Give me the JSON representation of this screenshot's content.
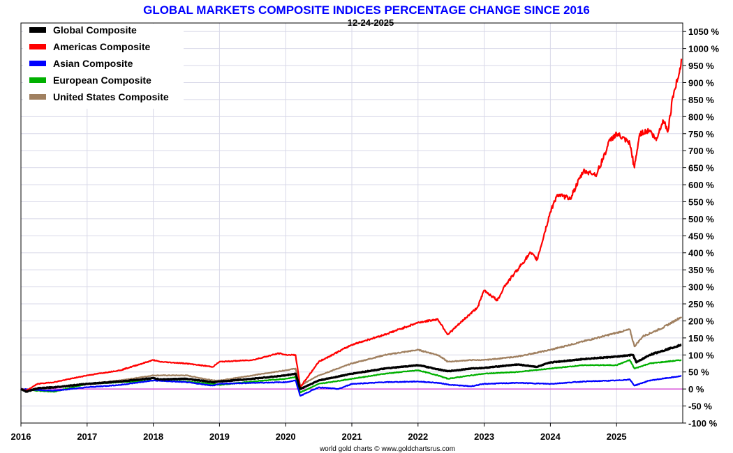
{
  "chart_data": {
    "type": "line",
    "title": "GLOBAL MARKETS COMPOSITE INDICES PERCENTAGE CHANGE SINCE 2016",
    "subtitle": "12-24-2025",
    "credit": "world gold charts © www.goldchartsrus.com",
    "ylabel": "",
    "xlabel": "",
    "x_range": [
      2016.0,
      2026.0
    ],
    "ylim": [
      -100,
      1075
    ],
    "x_ticks": [
      "2016",
      "2017",
      "2018",
      "2019",
      "2020",
      "2021",
      "2022",
      "2023",
      "2024",
      "2025"
    ],
    "y_ticks": [
      "1050 %",
      "1000 %",
      "950 %",
      "900 %",
      "850 %",
      "800 %",
      "750 %",
      "700 %",
      "650 %",
      "600 %",
      "550 %",
      "500 %",
      "450 %",
      "400 %",
      "350 %",
      "300 %",
      "250 %",
      "200 %",
      "150 %",
      "100 %",
      "50 %",
      "0 %",
      "-50 %",
      "-100 %"
    ],
    "y_tick_values": [
      1050,
      1000,
      950,
      900,
      850,
      800,
      750,
      700,
      650,
      600,
      550,
      500,
      450,
      400,
      350,
      300,
      250,
      200,
      150,
      100,
      50,
      0,
      -50,
      -100
    ],
    "baseline": 0,
    "legend_position": "top-left",
    "series": [
      {
        "name": "Global Composite",
        "color": "#000000",
        "x": [
          2016.0,
          2016.08,
          2016.25,
          2016.5,
          2017.0,
          2017.5,
          2018.0,
          2018.1,
          2018.5,
          2018.9,
          2019.0,
          2019.5,
          2020.0,
          2020.15,
          2020.22,
          2020.5,
          2021.0,
          2021.5,
          2022.0,
          2022.3,
          2022.45,
          2022.8,
          2023.0,
          2023.5,
          2023.8,
          2024.0,
          2024.5,
          2025.0,
          2025.25,
          2025.3,
          2025.5,
          2025.98
        ],
        "values": [
          0,
          -8,
          2,
          5,
          15,
          22,
          32,
          28,
          30,
          20,
          22,
          30,
          40,
          45,
          0,
          25,
          45,
          60,
          70,
          58,
          52,
          60,
          62,
          72,
          65,
          78,
          88,
          95,
          100,
          78,
          100,
          130
        ]
      },
      {
        "name": "Americas Composite",
        "color": "#ff0000",
        "x": [
          2016.0,
          2016.08,
          2016.25,
          2016.5,
          2017.0,
          2017.5,
          2018.0,
          2018.1,
          2018.5,
          2018.9,
          2019.0,
          2019.5,
          2019.9,
          2020.0,
          2020.15,
          2020.22,
          2020.5,
          2021.0,
          2021.5,
          2022.0,
          2022.3,
          2022.45,
          2022.7,
          2022.9,
          2023.0,
          2023.2,
          2023.3,
          2023.5,
          2023.7,
          2023.8,
          2024.0,
          2024.1,
          2024.3,
          2024.5,
          2024.7,
          2024.9,
          2025.0,
          2025.2,
          2025.27,
          2025.35,
          2025.5,
          2025.6,
          2025.7,
          2025.78,
          2025.85,
          2025.88,
          2025.95,
          2025.98
        ],
        "values": [
          0,
          -5,
          15,
          20,
          40,
          55,
          85,
          80,
          75,
          65,
          80,
          85,
          105,
          100,
          100,
          5,
          80,
          130,
          160,
          195,
          205,
          160,
          205,
          240,
          290,
          260,
          300,
          350,
          400,
          380,
          520,
          570,
          560,
          640,
          630,
          730,
          750,
          720,
          650,
          750,
          760,
          730,
          790,
          760,
          860,
          880,
          930,
          970
        ]
      },
      {
        "name": "Asian Composite",
        "color": "#0000ff",
        "x": [
          2016.0,
          2016.25,
          2016.5,
          2017.0,
          2017.5,
          2018.0,
          2018.5,
          2018.9,
          2019.0,
          2019.5,
          2020.0,
          2020.15,
          2020.22,
          2020.5,
          2020.8,
          2021.0,
          2021.5,
          2022.0,
          2022.3,
          2022.5,
          2022.8,
          2023.0,
          2023.5,
          2024.0,
          2024.5,
          2025.0,
          2025.2,
          2025.27,
          2025.5,
          2025.98
        ],
        "values": [
          0,
          -3,
          -5,
          5,
          12,
          25,
          20,
          10,
          15,
          18,
          20,
          25,
          -20,
          5,
          0,
          15,
          20,
          22,
          18,
          12,
          8,
          15,
          18,
          15,
          22,
          25,
          28,
          10,
          25,
          38
        ]
      },
      {
        "name": "European Composite",
        "color": "#00b000",
        "x": [
          2016.0,
          2016.25,
          2016.5,
          2017.0,
          2017.5,
          2018.0,
          2018.5,
          2018.9,
          2019.0,
          2019.5,
          2020.0,
          2020.15,
          2020.22,
          2020.5,
          2021.0,
          2021.5,
          2022.0,
          2022.3,
          2022.45,
          2022.8,
          2023.0,
          2023.5,
          2024.0,
          2024.5,
          2025.0,
          2025.2,
          2025.27,
          2025.5,
          2025.98
        ],
        "values": [
          0,
          -5,
          -8,
          15,
          20,
          25,
          22,
          15,
          12,
          22,
          30,
          35,
          -10,
          15,
          30,
          45,
          55,
          40,
          30,
          40,
          45,
          50,
          60,
          70,
          70,
          85,
          60,
          75,
          85
        ]
      },
      {
        "name": "United States Composite",
        "color": "#a08060",
        "x": [
          2016.0,
          2016.25,
          2016.5,
          2017.0,
          2017.5,
          2018.0,
          2018.5,
          2018.9,
          2019.0,
          2019.5,
          2020.0,
          2020.15,
          2020.22,
          2020.5,
          2021.0,
          2021.5,
          2022.0,
          2022.3,
          2022.45,
          2022.8,
          2023.0,
          2023.5,
          2024.0,
          2024.5,
          2025.0,
          2025.2,
          2025.27,
          2025.4,
          2025.7,
          2025.98
        ],
        "values": [
          0,
          -3,
          5,
          15,
          25,
          40,
          40,
          25,
          25,
          40,
          55,
          60,
          10,
          40,
          75,
          100,
          115,
          100,
          80,
          85,
          85,
          95,
          115,
          140,
          165,
          175,
          125,
          155,
          180,
          212
        ]
      }
    ]
  }
}
